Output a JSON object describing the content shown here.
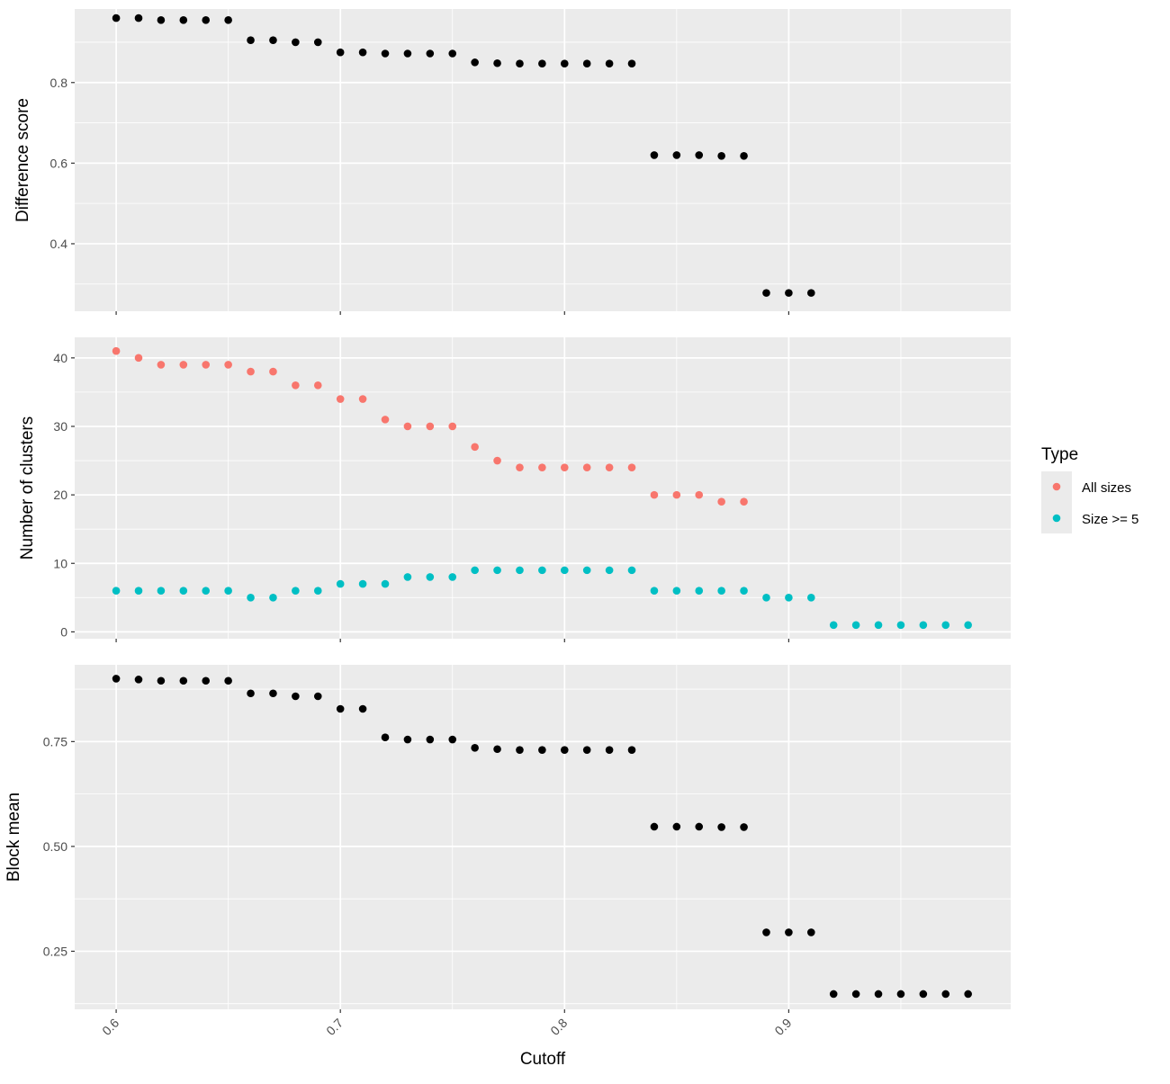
{
  "chart_data": [
    {
      "type": "scatter",
      "panel": "top",
      "ylabel": "Difference score",
      "xlim": [
        0.5815,
        0.999
      ],
      "ylim": [
        0.2325,
        0.9825
      ],
      "yticks": [
        0.4,
        0.6,
        0.8
      ],
      "ytick_labels": [
        "0.4",
        "0.6",
        "0.8"
      ],
      "grid": true,
      "series": [
        {
          "x": [
            0.6,
            0.61,
            0.62,
            0.63,
            0.64,
            0.65,
            0.66,
            0.67,
            0.68,
            0.69,
            0.7,
            0.71,
            0.72,
            0.73,
            0.74,
            0.75,
            0.76,
            0.77,
            0.78,
            0.79,
            0.8,
            0.81,
            0.82,
            0.83,
            0.84,
            0.85,
            0.86,
            0.87,
            0.88,
            0.89,
            0.9,
            0.91
          ],
          "y": [
            0.96,
            0.96,
            0.955,
            0.955,
            0.955,
            0.955,
            0.905,
            0.905,
            0.9,
            0.9,
            0.875,
            0.875,
            0.872,
            0.872,
            0.872,
            0.872,
            0.85,
            0.848,
            0.847,
            0.847,
            0.847,
            0.847,
            0.847,
            0.847,
            0.62,
            0.62,
            0.62,
            0.618,
            0.618,
            0.278,
            0.278,
            0.278
          ],
          "color": "#000000"
        }
      ]
    },
    {
      "type": "scatter",
      "panel": "middle",
      "ylabel": "Number of clusters",
      "xlim": [
        0.5815,
        0.999
      ],
      "ylim": [
        -1,
        43
      ],
      "yticks": [
        0,
        10,
        20,
        30,
        40
      ],
      "ytick_labels": [
        "0",
        "10",
        "20",
        "30",
        "40"
      ],
      "grid": true,
      "series": [
        {
          "name": "All sizes",
          "color": "#F8766D",
          "x": [
            0.6,
            0.61,
            0.62,
            0.63,
            0.64,
            0.65,
            0.66,
            0.67,
            0.68,
            0.69,
            0.7,
            0.71,
            0.72,
            0.73,
            0.74,
            0.75,
            0.76,
            0.77,
            0.78,
            0.79,
            0.8,
            0.81,
            0.82,
            0.83,
            0.84,
            0.85,
            0.86,
            0.87,
            0.88
          ],
          "y": [
            41,
            40,
            39,
            39,
            39,
            39,
            38,
            38,
            36,
            36,
            34,
            34,
            31,
            30,
            30,
            30,
            27,
            25,
            24,
            24,
            24,
            24,
            24,
            24,
            20,
            20,
            20,
            19,
            19
          ]
        },
        {
          "name": "Size >= 5",
          "color": "#00BFC4",
          "x": [
            0.6,
            0.61,
            0.62,
            0.63,
            0.64,
            0.65,
            0.66,
            0.67,
            0.68,
            0.69,
            0.7,
            0.71,
            0.72,
            0.73,
            0.74,
            0.75,
            0.76,
            0.77,
            0.78,
            0.79,
            0.8,
            0.81,
            0.82,
            0.83,
            0.84,
            0.85,
            0.86,
            0.87,
            0.88,
            0.89,
            0.9,
            0.91,
            0.92,
            0.93,
            0.94,
            0.95,
            0.96,
            0.97,
            0.98
          ],
          "y": [
            6,
            6,
            6,
            6,
            6,
            6,
            5,
            5,
            6,
            6,
            7,
            7,
            7,
            8,
            8,
            8,
            9,
            9,
            9,
            9,
            9,
            9,
            9,
            9,
            6,
            6,
            6,
            6,
            6,
            5,
            5,
            5,
            1,
            1,
            1,
            1,
            1,
            1,
            1
          ]
        }
      ]
    },
    {
      "type": "scatter",
      "panel": "bottom",
      "ylabel": "Block mean",
      "xlabel": "Cutoff",
      "xlim": [
        0.5815,
        0.999
      ],
      "ylim": [
        0.1115,
        0.9331
      ],
      "xticks": [
        0.6,
        0.7,
        0.8,
        0.9
      ],
      "xtick_labels": [
        "0.6",
        "0.7",
        "0.8",
        "0.9"
      ],
      "yticks": [
        0.25,
        0.5,
        0.75
      ],
      "ytick_labels": [
        "0.25",
        "0.50",
        "0.75"
      ],
      "grid": true,
      "series": [
        {
          "color": "#000000",
          "x": [
            0.6,
            0.61,
            0.62,
            0.63,
            0.64,
            0.65,
            0.66,
            0.67,
            0.68,
            0.69,
            0.7,
            0.71,
            0.72,
            0.73,
            0.74,
            0.75,
            0.76,
            0.77,
            0.78,
            0.79,
            0.8,
            0.81,
            0.82,
            0.83,
            0.84,
            0.85,
            0.86,
            0.87,
            0.88,
            0.89,
            0.9,
            0.91,
            0.92,
            0.93,
            0.94,
            0.95,
            0.96,
            0.97,
            0.98
          ],
          "y": [
            0.9,
            0.898,
            0.895,
            0.895,
            0.895,
            0.895,
            0.865,
            0.865,
            0.858,
            0.858,
            0.828,
            0.828,
            0.76,
            0.755,
            0.755,
            0.755,
            0.735,
            0.732,
            0.73,
            0.73,
            0.73,
            0.73,
            0.73,
            0.73,
            0.547,
            0.547,
            0.547,
            0.546,
            0.546,
            0.295,
            0.295,
            0.295,
            0.148,
            0.148,
            0.148,
            0.148,
            0.148,
            0.148,
            0.148
          ]
        }
      ]
    }
  ],
  "legend": {
    "title": "Type",
    "items": [
      {
        "label": "All sizes",
        "color": "#F8766D"
      },
      {
        "label": "Size >= 5",
        "color": "#00BFC4"
      }
    ]
  },
  "style": {
    "panel_background": "#EBEBEB",
    "grid_color": "#FFFFFF"
  }
}
